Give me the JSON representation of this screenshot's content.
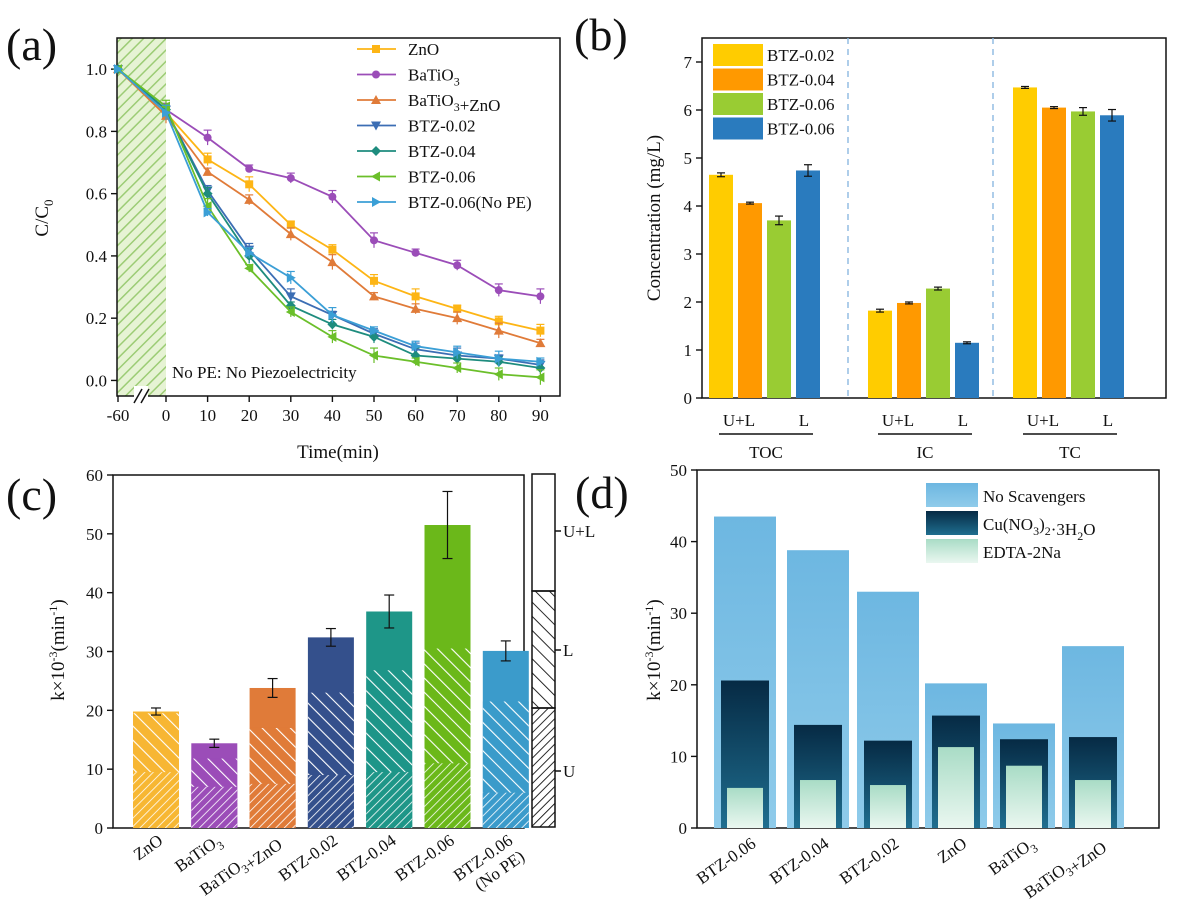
{
  "panels": {
    "a": {
      "label": "(a)",
      "ylabel": "C/C",
      "ylabel_sub": "0",
      "xlabel": "Time(min)",
      "annotation": "No PE: No Piezoelectricity"
    },
    "b": {
      "label": "(b)",
      "ylabel": "Concentration (mg/L)",
      "group_labels": [
        "TOC",
        "IC",
        "TC"
      ],
      "sub_labels": [
        "U+L",
        "L"
      ]
    },
    "c": {
      "label": "(c)",
      "ylabel": "k×10",
      "ylabel_sup": "-3",
      "ylabel_tail": "(min",
      "ylabel_sup2": "-1",
      "ylabel_end": ")",
      "side_legend": [
        "U+L",
        "L",
        "U"
      ]
    },
    "d": {
      "label": "(d)",
      "ylabel": "k×10",
      "ylabel_sup": "-3",
      "ylabel_tail": "(min",
      "ylabel_sup2": "-1",
      "ylabel_end": ")"
    }
  },
  "chart_data": [
    {
      "panel": "a",
      "type": "line",
      "xlabel": "Time(min)",
      "ylabel": "C/C0",
      "x": [
        -60,
        0,
        10,
        20,
        30,
        40,
        50,
        60,
        70,
        80,
        90
      ],
      "x_tick_labels": [
        "-60",
        "0",
        "10",
        "20",
        "30",
        "40",
        "50",
        "60",
        "70",
        "80",
        "90"
      ],
      "ylim": [
        -0.05,
        1.1
      ],
      "y_ticks": [
        "0.0",
        "0.2",
        "0.4",
        "0.6",
        "0.8",
        "1.0"
      ],
      "series": [
        {
          "name": "ZnO",
          "color": "#FDB515",
          "marker": "square",
          "values": [
            1.0,
            0.86,
            0.71,
            0.63,
            0.5,
            0.42,
            0.32,
            0.27,
            0.23,
            0.19,
            0.16
          ]
        },
        {
          "name": "BaTiO3",
          "color": "#9B4DB8",
          "marker": "circle",
          "values": [
            1.0,
            0.87,
            0.78,
            0.68,
            0.65,
            0.59,
            0.45,
            0.41,
            0.37,
            0.29,
            0.27
          ]
        },
        {
          "name": "BaTiO3+ZnO",
          "color": "#E07B39",
          "marker": "triangle-up",
          "values": [
            1.0,
            0.85,
            0.67,
            0.58,
            0.47,
            0.38,
            0.27,
            0.23,
            0.2,
            0.16,
            0.12
          ]
        },
        {
          "name": "BTZ-0.02",
          "color": "#3C6EB4",
          "marker": "triangle-down",
          "values": [
            1.0,
            0.87,
            0.61,
            0.42,
            0.27,
            0.21,
            0.15,
            0.1,
            0.08,
            0.07,
            0.05
          ]
        },
        {
          "name": "BTZ-0.04",
          "color": "#1E8C7E",
          "marker": "diamond",
          "values": [
            1.0,
            0.87,
            0.6,
            0.4,
            0.24,
            0.18,
            0.14,
            0.08,
            0.07,
            0.06,
            0.04
          ]
        },
        {
          "name": "BTZ-0.06",
          "color": "#6BBF2A",
          "marker": "triangle-left",
          "values": [
            1.0,
            0.88,
            0.56,
            0.36,
            0.22,
            0.14,
            0.08,
            0.06,
            0.04,
            0.02,
            0.01
          ]
        },
        {
          "name": "BTZ-0.06(No PE)",
          "color": "#3B9FD6",
          "marker": "triangle-right",
          "values": [
            1.0,
            0.86,
            0.54,
            0.41,
            0.33,
            0.21,
            0.16,
            0.11,
            0.09,
            0.07,
            0.06
          ]
        }
      ],
      "legend_position": "top-right"
    },
    {
      "panel": "b",
      "type": "bar",
      "ylabel": "Concentration (mg/L)",
      "ylim": [
        0,
        7.5
      ],
      "y_ticks": [
        "0",
        "1",
        "2",
        "3",
        "4",
        "5",
        "6",
        "7"
      ],
      "groups": [
        "TOC",
        "IC",
        "TC"
      ],
      "series": [
        {
          "name": "BTZ-0.02",
          "color": "#FFCC00",
          "values": [
            4.65,
            1.82,
            6.47
          ]
        },
        {
          "name": "BTZ-0.04",
          "color": "#FF9900",
          "values": [
            4.06,
            1.98,
            6.05
          ]
        },
        {
          "name": "BTZ-0.06",
          "color": "#99CC33",
          "values": [
            3.7,
            2.28,
            5.97
          ]
        },
        {
          "name": "BTZ-0.06",
          "color": "#2A7BBE",
          "values": [
            4.74,
            1.15,
            5.89
          ]
        }
      ],
      "errors": [
        [
          0.04,
          0.03,
          0.02
        ],
        [
          0.02,
          0.02,
          0.02
        ],
        [
          0.09,
          0.03,
          0.08
        ],
        [
          0.12,
          0.02,
          0.12
        ]
      ],
      "legend_position": "top-left"
    },
    {
      "panel": "c",
      "type": "bar",
      "ylabel": "k×10-3(min-1)",
      "ylim": [
        0,
        60
      ],
      "y_ticks": [
        "0",
        "10",
        "20",
        "30",
        "40",
        "50",
        "60"
      ],
      "categories": [
        "ZnO",
        "BaTiO3",
        "BaTiO3+ZnO",
        "BTZ-0.02",
        "BTZ-0.04",
        "BTZ-0.06",
        "BTZ-0.06 (No PE)"
      ],
      "colors": [
        "#F7B733",
        "#9B4DB8",
        "#E07B39",
        "#34508C",
        "#1E9688",
        "#6BB81A",
        "#3B9BCB"
      ],
      "U": [
        9.5,
        7.0,
        7.5,
        9.0,
        9.5,
        11.0,
        6.0
      ],
      "L": [
        19.5,
        11.8,
        17.0,
        23.0,
        26.8,
        30.5,
        21.5
      ],
      "U+L": [
        19.8,
        14.4,
        23.8,
        32.4,
        36.8,
        51.5,
        30.1
      ],
      "errors": [
        0.6,
        0.7,
        1.6,
        1.5,
        2.8,
        5.7,
        1.7
      ]
    },
    {
      "panel": "d",
      "type": "bar",
      "ylabel": "k×10-3(min-1)",
      "ylim": [
        0,
        50
      ],
      "y_ticks": [
        "0",
        "10",
        "20",
        "30",
        "40",
        "50"
      ],
      "categories": [
        "BTZ-0.06",
        "BTZ-0.04",
        "BTZ-0.02",
        "ZnO",
        "BaTiO3",
        "BaTiO3+ZnO"
      ],
      "series": [
        {
          "name": "No Scavengers",
          "color": "#74BCE2",
          "values": [
            43.5,
            38.8,
            33.0,
            20.2,
            14.6,
            25.4
          ]
        },
        {
          "name": "Cu(NO3)2·3H2O",
          "color": "#0B3C5D",
          "values": [
            20.6,
            14.4,
            12.2,
            15.7,
            12.4,
            12.7
          ]
        },
        {
          "name": "EDTA-2Na",
          "color": "#C9E8DA",
          "values": [
            5.6,
            6.7,
            6.0,
            11.3,
            8.7,
            6.7
          ]
        }
      ],
      "legend_position": "top-right"
    }
  ]
}
